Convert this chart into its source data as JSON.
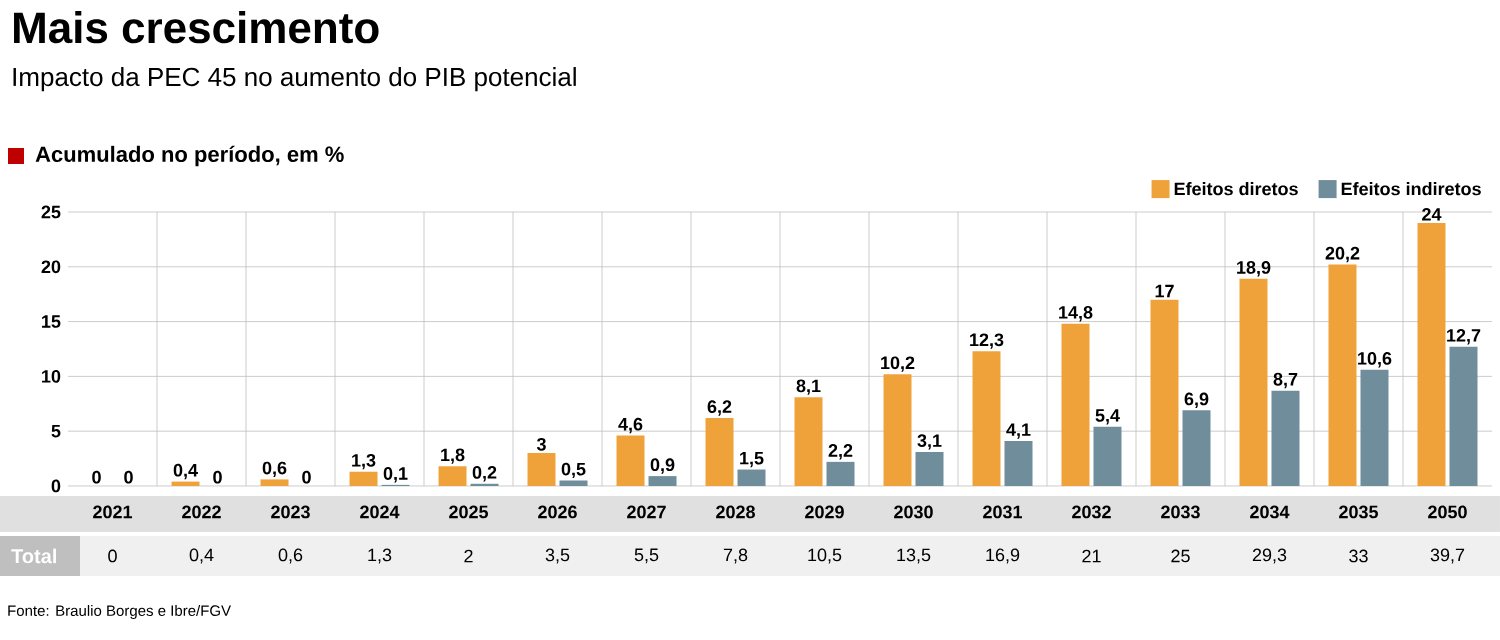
{
  "chart_data": {
    "type": "bar",
    "title": "Mais crescimento",
    "subtitle": "Impacto da PEC 45 no aumento do PIB potencial",
    "ylabel": "Acumulado no período, em %",
    "categories": [
      "2021",
      "2022",
      "2023",
      "2024",
      "2025",
      "2026",
      "2027",
      "2028",
      "2029",
      "2030",
      "2031",
      "2032",
      "2033",
      "2034",
      "2035",
      "2050"
    ],
    "series": [
      {
        "name": "Efeitos diretos",
        "color": "#f0a23a",
        "values": [
          0,
          0.4,
          0.6,
          1.3,
          1.8,
          3,
          4.6,
          6.2,
          8.1,
          10.2,
          12.3,
          14.8,
          17,
          18.9,
          20.2,
          24
        ],
        "value_labels": [
          "0",
          "0,4",
          "0,6",
          "1,3",
          "1,8",
          "3",
          "4,6",
          "6,2",
          "8,1",
          "10,2",
          "12,3",
          "14,8",
          "17",
          "18,9",
          "20,2",
          "24"
        ]
      },
      {
        "name": "Efeitos indiretos",
        "color": "#6f8d9a",
        "values": [
          0,
          0,
          0,
          0.1,
          0.2,
          0.5,
          0.9,
          1.5,
          2.2,
          3.1,
          4.1,
          5.4,
          6.9,
          8.7,
          10.6,
          12.7
        ],
        "value_labels": [
          "0",
          "0",
          "0",
          "0,1",
          "0,2",
          "0,5",
          "0,9",
          "1,5",
          "2,2",
          "3,1",
          "4,1",
          "5,4",
          "6,9",
          "8,7",
          "10,6",
          "12,7"
        ]
      }
    ],
    "ylim": [
      0,
      25
    ],
    "yticks": [
      0,
      5,
      10,
      15,
      20,
      25
    ],
    "grid": true,
    "legend": "top right",
    "annotations": [
      "Fonte: Braulio Borges e Ibre/FGV",
      "Total",
      "0",
      "0,4",
      "0,6",
      "1,3",
      "2",
      "3,5",
      "5,5",
      "7,8",
      "10,5",
      "13,5",
      "16,9",
      "21",
      "25",
      "29,3",
      "33",
      "39,7"
    ]
  }
}
